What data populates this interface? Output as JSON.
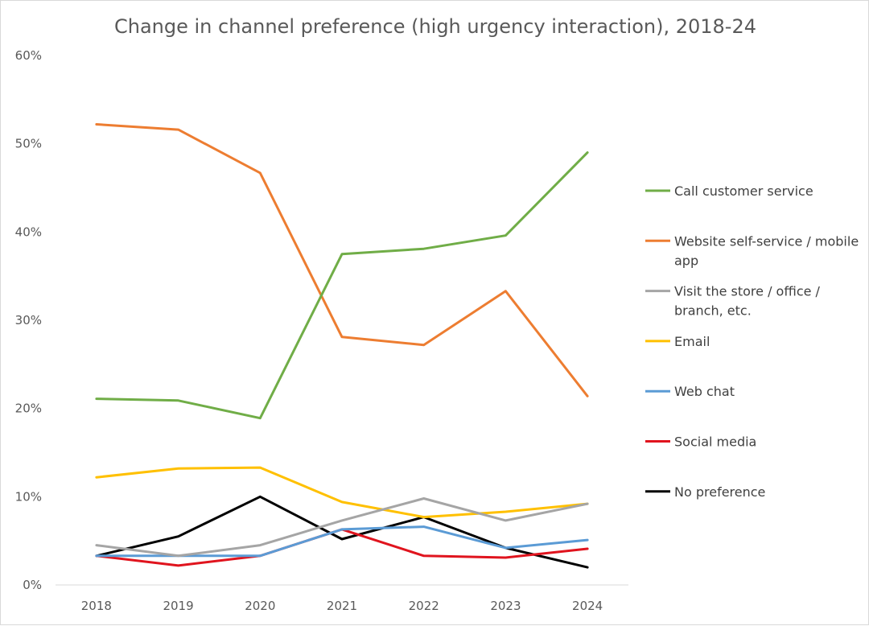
{
  "chart_data": {
    "type": "line",
    "title": "Change in channel preference (high urgency interaction), 2018-24",
    "xlabel": "",
    "ylabel": "",
    "categories": [
      "2018",
      "2019",
      "2020",
      "2021",
      "2022",
      "2023",
      "2024"
    ],
    "ylim": [
      0,
      60
    ],
    "yticks": [
      "0%",
      "10%",
      "20%",
      "30%",
      "40%",
      "50%",
      "60%"
    ],
    "grid": false,
    "legend_position": "right",
    "series": [
      {
        "name": "Call customer service",
        "color": "#70ad47",
        "values": [
          21.1,
          20.9,
          18.9,
          37.5,
          38.1,
          39.6,
          49.0
        ]
      },
      {
        "name": "Website self-service / mobile app",
        "color": "#ed7d31",
        "values": [
          52.2,
          51.6,
          46.7,
          28.1,
          27.2,
          33.3,
          21.4
        ]
      },
      {
        "name": "Visit the store / office / branch, etc.",
        "color": "#a5a5a5",
        "values": [
          4.5,
          3.3,
          4.5,
          7.3,
          9.8,
          7.3,
          9.2
        ]
      },
      {
        "name": "Email",
        "color": "#ffc000",
        "values": [
          12.2,
          13.2,
          13.3,
          9.4,
          7.7,
          8.3,
          9.2
        ]
      },
      {
        "name": "Web chat",
        "color": "#5b9bd5",
        "values": [
          3.3,
          3.3,
          3.3,
          6.3,
          6.6,
          4.2,
          5.1
        ]
      },
      {
        "name": "Social media",
        "color": "#e0141e",
        "values": [
          3.3,
          2.2,
          3.3,
          6.3,
          3.3,
          3.1,
          4.1
        ]
      },
      {
        "name": "No preference",
        "color": "#000000",
        "values": [
          3.3,
          5.5,
          10.0,
          5.2,
          7.7,
          4.2,
          2.0
        ]
      }
    ]
  }
}
